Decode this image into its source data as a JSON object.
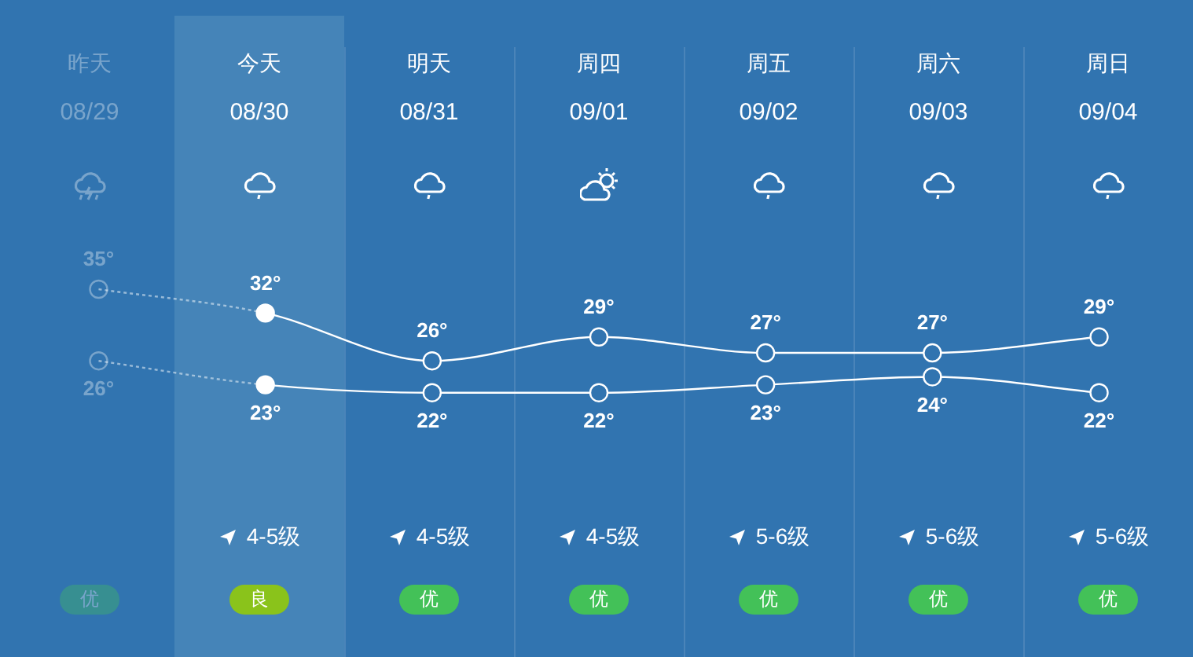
{
  "chart_data": {
    "type": "line",
    "categories": [
      "昨天\n08/29",
      "今天\n08/30",
      "明天\n08/31",
      "周四\n09/01",
      "周五\n09/02",
      "周六\n09/03",
      "周日\n09/04"
    ],
    "series": [
      {
        "color": "#ffffff",
        "values": [
          35,
          32,
          26,
          29,
          27,
          27,
          29
        ],
        "value_labels": [
          "35°",
          "32°",
          "26°",
          "29°",
          "27°",
          "27°",
          "29°"
        ]
      },
      {
        "color": "#ffffff",
        "values": [
          26,
          23,
          22,
          22,
          23,
          24,
          22
        ],
        "value_labels": [
          "26°",
          "23°",
          "22°",
          "22°",
          "23°",
          "24°",
          "22°"
        ]
      }
    ],
    "marker": "circle",
    "legend": false,
    "bands": [
      {
        "axis": "x",
        "from": "今天\n08/30",
        "to": "今天\n08/30",
        "color": "#4584b8"
      }
    ],
    "annotations": [
      "4-5级",
      "4-5级",
      "4-5级",
      "5-6级",
      "5-6级",
      "5-6级",
      "优",
      "良",
      "优",
      "优",
      "优",
      "优",
      "优"
    ]
  }
}
